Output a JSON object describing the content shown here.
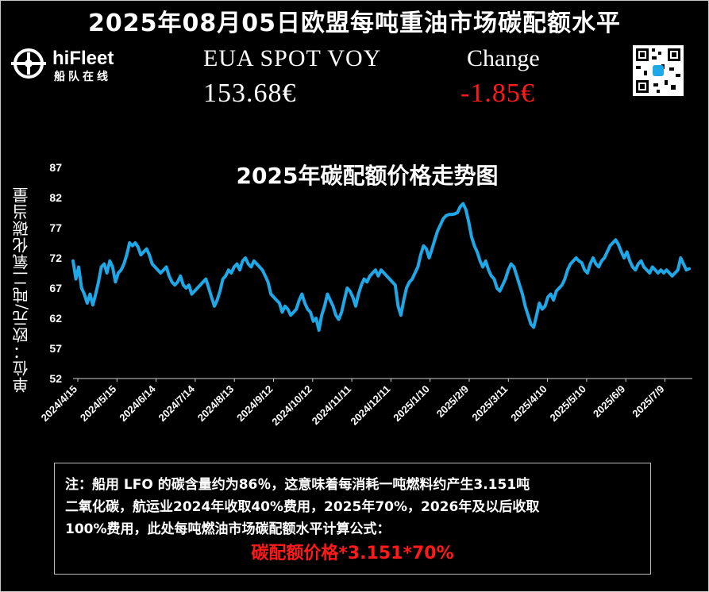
{
  "header": {
    "title": "2025年08月05日欧盟每吨重油市场碳配额水平",
    "logo_name": "hiFleet",
    "logo_sub": "船队在线",
    "label_spot": "EUA SPOT VOY",
    "label_change": "Change",
    "price": "153.68€",
    "change": "-1.85€",
    "change_color": "#ff1a1a",
    "qr_code_icon": "qr-code-icon"
  },
  "chart_data": {
    "type": "line",
    "title": "2025年碳配额价格走势图",
    "xlabel": "",
    "ylabel": "单位：欧元/吨二氧化碳当量",
    "ylim": [
      52,
      87
    ],
    "yticks": [
      52,
      57,
      62,
      67,
      72,
      77,
      82,
      87
    ],
    "xticks": [
      "2024/4/15",
      "2024/5/15",
      "2024/6/14",
      "2024/7/14",
      "2024/8/13",
      "2024/9/12",
      "2024/10/12",
      "2024/11/11",
      "2024/12/11",
      "2025/1/10",
      "2025/2/9",
      "2025/3/11",
      "2025/4/10",
      "2025/5/10",
      "2025/6/9",
      "2025/7/9"
    ],
    "line_color": "#1fa8e8",
    "grid": false,
    "series": [
      {
        "name": "",
        "values": [
          71.5,
          68.5,
          70.5,
          67,
          66,
          64.5,
          66,
          64.2,
          66,
          68,
          70.5,
          71,
          69.5,
          71.5,
          70.5,
          68,
          69.5,
          70,
          71,
          72.5,
          74.5,
          74,
          74.5,
          73.8,
          72.5,
          73,
          73.5,
          72.5,
          71,
          70.5,
          70,
          69.5,
          70,
          70.5,
          69,
          68,
          67.5,
          68,
          69,
          67.5,
          67,
          67.5,
          66,
          66.5,
          67,
          67.5,
          68,
          68.5,
          67,
          65.5,
          64,
          65,
          66.5,
          68.5,
          69,
          70,
          69.5,
          70.5,
          71,
          70,
          71.5,
          72,
          71,
          70.5,
          71.5,
          71,
          70.5,
          70,
          69,
          68,
          66,
          65.5,
          65,
          64.5,
          63,
          64,
          63.5,
          62.5,
          63,
          63.5,
          65,
          66,
          64.5,
          63.5,
          63,
          61.5,
          62,
          60,
          62.5,
          64,
          66,
          65,
          64,
          62.5,
          61.8,
          63,
          65,
          67,
          66.5,
          65.5,
          64,
          66,
          67.5,
          68.5,
          68,
          69,
          69.5,
          70,
          69,
          70,
          69.5,
          69,
          68.5,
          68,
          67.5,
          64,
          62.5,
          65,
          67,
          68,
          68.5,
          69.5,
          70.5,
          72.5,
          74,
          73.5,
          72,
          73.5,
          75,
          76.5,
          77.5,
          78.5,
          79,
          79.2,
          79.2,
          79.3,
          79.5,
          80.5,
          81,
          80,
          78,
          75.5,
          74,
          73,
          71.5,
          70.5,
          71.5,
          70,
          69,
          68.5,
          67,
          66.5,
          67.5,
          68.5,
          70,
          71,
          70.5,
          69,
          67.5,
          66,
          64,
          62.5,
          61,
          60.5,
          62.5,
          64.5,
          63.5,
          64,
          65.5,
          66,
          65,
          66.5,
          67,
          67.5,
          68.5,
          70,
          71,
          71.5,
          72,
          71.5,
          71.2,
          70,
          69.5,
          71,
          72,
          71,
          70.5,
          71.5,
          72,
          73,
          74,
          74.5,
          75,
          74.2,
          73,
          72,
          73,
          71.5,
          70.5,
          70,
          71,
          71.5,
          70.5,
          70,
          69.5,
          70.5,
          70,
          69.5,
          70,
          69.5,
          70,
          69.5,
          69,
          69.5,
          70,
          72,
          71,
          70,
          70.2
        ]
      }
    ]
  },
  "note": {
    "line1": "注：船用 LFO 的碳含量约为86％，这意味着每消耗一吨燃料约产生3.151吨",
    "line2": "二氧化碳，航运业2024年收取40%费用，2025年70%，2026年及以后收取",
    "line3": "100%费用，此处每吨燃油市场碳配额水平计算公式：",
    "formula": "碳配额价格*3.151*70%",
    "formula_color": "#ff1a1a"
  }
}
